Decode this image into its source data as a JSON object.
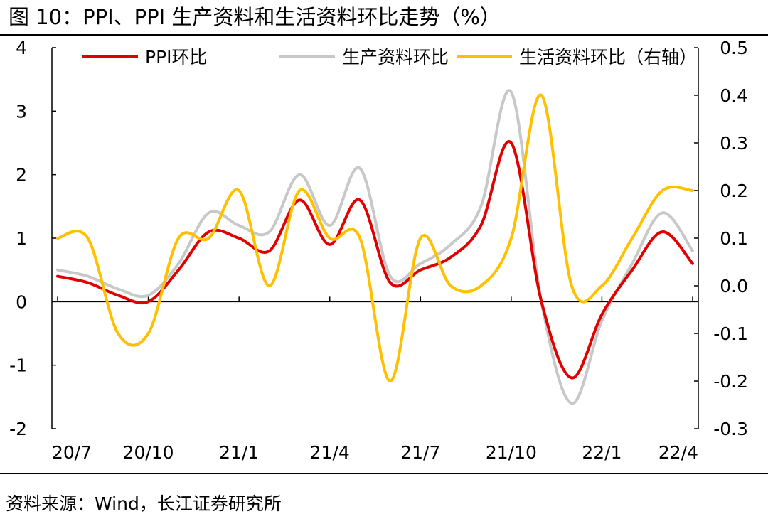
{
  "title": "图  10：PPI、PPI 生产资料和生活资料环比走势（%）",
  "source": "资料来源：Wind，长江证券研究所",
  "chart_data": {
    "type": "line",
    "categories": [
      "20/7",
      "20/8",
      "20/9",
      "20/10",
      "20/11",
      "20/12",
      "21/1",
      "21/2",
      "21/3",
      "21/4",
      "21/5",
      "21/6",
      "21/7",
      "21/8",
      "21/9",
      "21/10",
      "21/11",
      "21/12",
      "22/1",
      "22/2",
      "22/3",
      "22/4"
    ],
    "x_tick_labels": [
      "20/7",
      "20/10",
      "21/1",
      "21/4",
      "21/7",
      "21/10",
      "22/1",
      "22/4"
    ],
    "left_axis": {
      "min": -2,
      "max": 4,
      "ticks": [
        "-2",
        "-1",
        "0",
        "1",
        "2",
        "3",
        "4"
      ]
    },
    "right_axis": {
      "min": -0.3,
      "max": 0.5,
      "ticks": [
        "-0.3",
        "-0.2",
        "-0.1",
        "0.0",
        "0.1",
        "0.2",
        "0.3",
        "0.4",
        "0.5"
      ]
    },
    "series": [
      {
        "name": "PPI环比",
        "axis": "left",
        "color": "#e00000",
        "values": [
          0.4,
          0.3,
          0.1,
          0.0,
          0.5,
          1.1,
          1.0,
          0.8,
          1.6,
          0.9,
          1.6,
          0.3,
          0.5,
          0.7,
          1.2,
          2.5,
          0.0,
          -1.2,
          -0.2,
          0.5,
          1.1,
          0.6
        ]
      },
      {
        "name": "生产资料环比",
        "axis": "left",
        "color": "#c8c8c8",
        "values": [
          0.5,
          0.4,
          0.2,
          0.1,
          0.6,
          1.4,
          1.2,
          1.1,
          2.0,
          1.2,
          2.1,
          0.4,
          0.6,
          0.9,
          1.5,
          3.3,
          0.0,
          -1.6,
          -0.3,
          0.6,
          1.4,
          0.8
        ]
      },
      {
        "name": "生活资料环比（右轴）",
        "axis": "right",
        "color": "#ffc000",
        "values": [
          0.1,
          0.1,
          -0.1,
          -0.1,
          0.1,
          0.1,
          0.2,
          0.0,
          0.2,
          0.1,
          0.1,
          -0.2,
          0.1,
          0.0,
          0.0,
          0.1,
          0.4,
          0.0,
          0.0,
          0.1,
          0.2,
          0.2
        ]
      }
    ]
  }
}
